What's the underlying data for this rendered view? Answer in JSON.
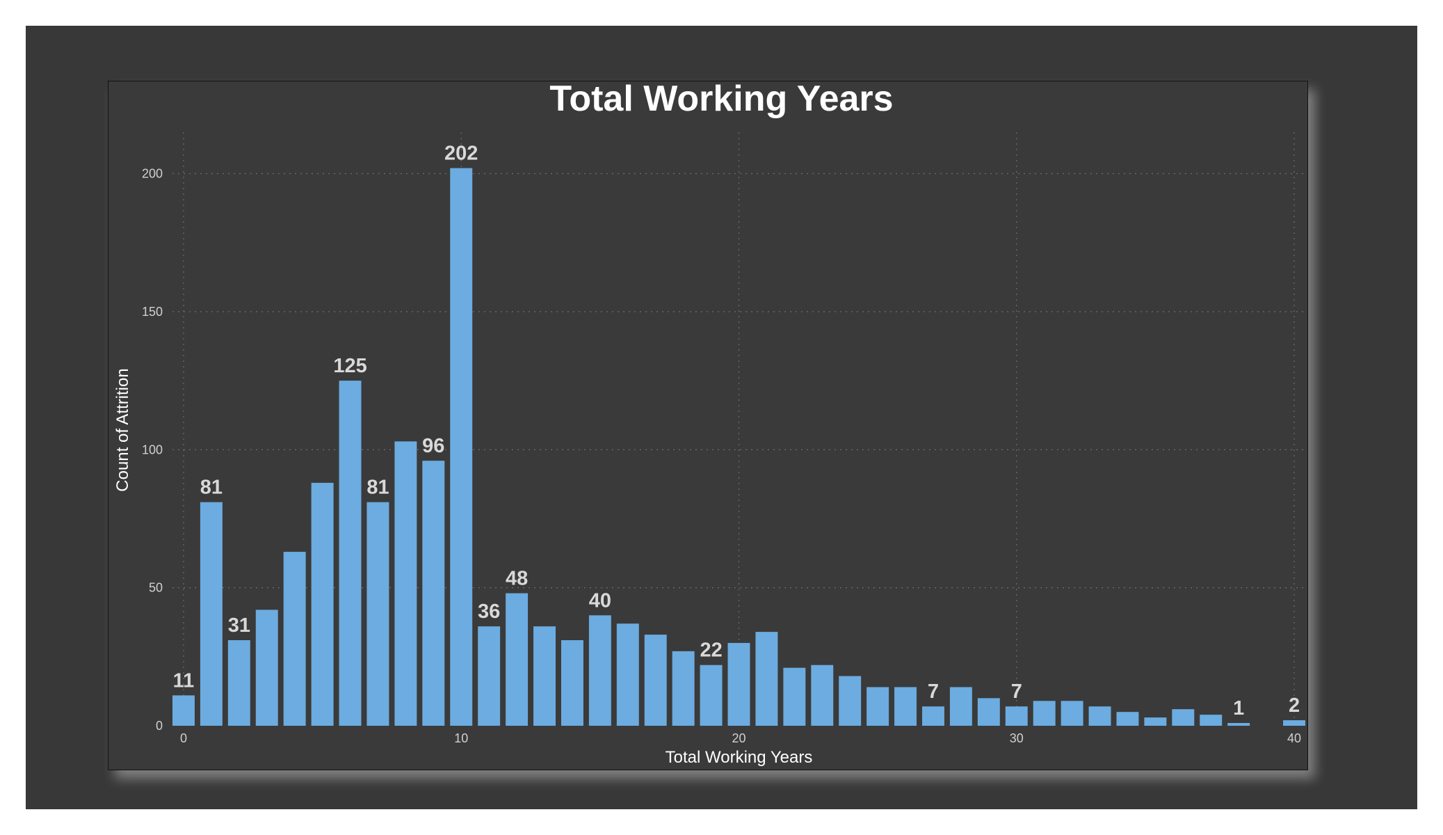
{
  "chart_data": {
    "type": "bar",
    "title": "Total Working Years",
    "xlabel": "Total Working Years",
    "ylabel": "Count of Attrition",
    "x": [
      0,
      1,
      2,
      3,
      4,
      5,
      6,
      7,
      8,
      9,
      10,
      11,
      12,
      13,
      14,
      15,
      16,
      17,
      18,
      19,
      20,
      21,
      22,
      23,
      24,
      25,
      26,
      27,
      28,
      29,
      30,
      31,
      32,
      33,
      34,
      35,
      36,
      37,
      38,
      40
    ],
    "values": [
      11,
      81,
      31,
      42,
      63,
      88,
      125,
      81,
      103,
      96,
      202,
      36,
      48,
      36,
      31,
      40,
      37,
      33,
      27,
      22,
      30,
      34,
      21,
      22,
      18,
      14,
      14,
      7,
      14,
      10,
      7,
      9,
      9,
      7,
      5,
      3,
      6,
      4,
      1,
      2
    ],
    "labels": [
      {
        "x": 0,
        "text": "11"
      },
      {
        "x": 1,
        "text": "81"
      },
      {
        "x": 2,
        "text": "31"
      },
      {
        "x": 6,
        "text": "125"
      },
      {
        "x": 7,
        "text": "81"
      },
      {
        "x": 9,
        "text": "96"
      },
      {
        "x": 10,
        "text": "202"
      },
      {
        "x": 11,
        "text": "36"
      },
      {
        "x": 12,
        "text": "48"
      },
      {
        "x": 15,
        "text": "40"
      },
      {
        "x": 19,
        "text": "22"
      },
      {
        "x": 27,
        "text": "7"
      },
      {
        "x": 30,
        "text": "7"
      },
      {
        "x": 38,
        "text": "1"
      },
      {
        "x": 40,
        "text": "2"
      }
    ],
    "xticks": [
      0,
      10,
      20,
      30,
      40
    ],
    "yticks": [
      0,
      50,
      100,
      150,
      200
    ],
    "xlim": [
      -0.4,
      40.4
    ],
    "ylim": [
      0,
      215
    ],
    "grid": true,
    "colors": {
      "bar": "#6cace0",
      "background": "#383838",
      "grid": "#6e6e6e",
      "title": "#ffffff",
      "data_label": "#d9d9d9",
      "tick": "#d0d0d0"
    }
  }
}
